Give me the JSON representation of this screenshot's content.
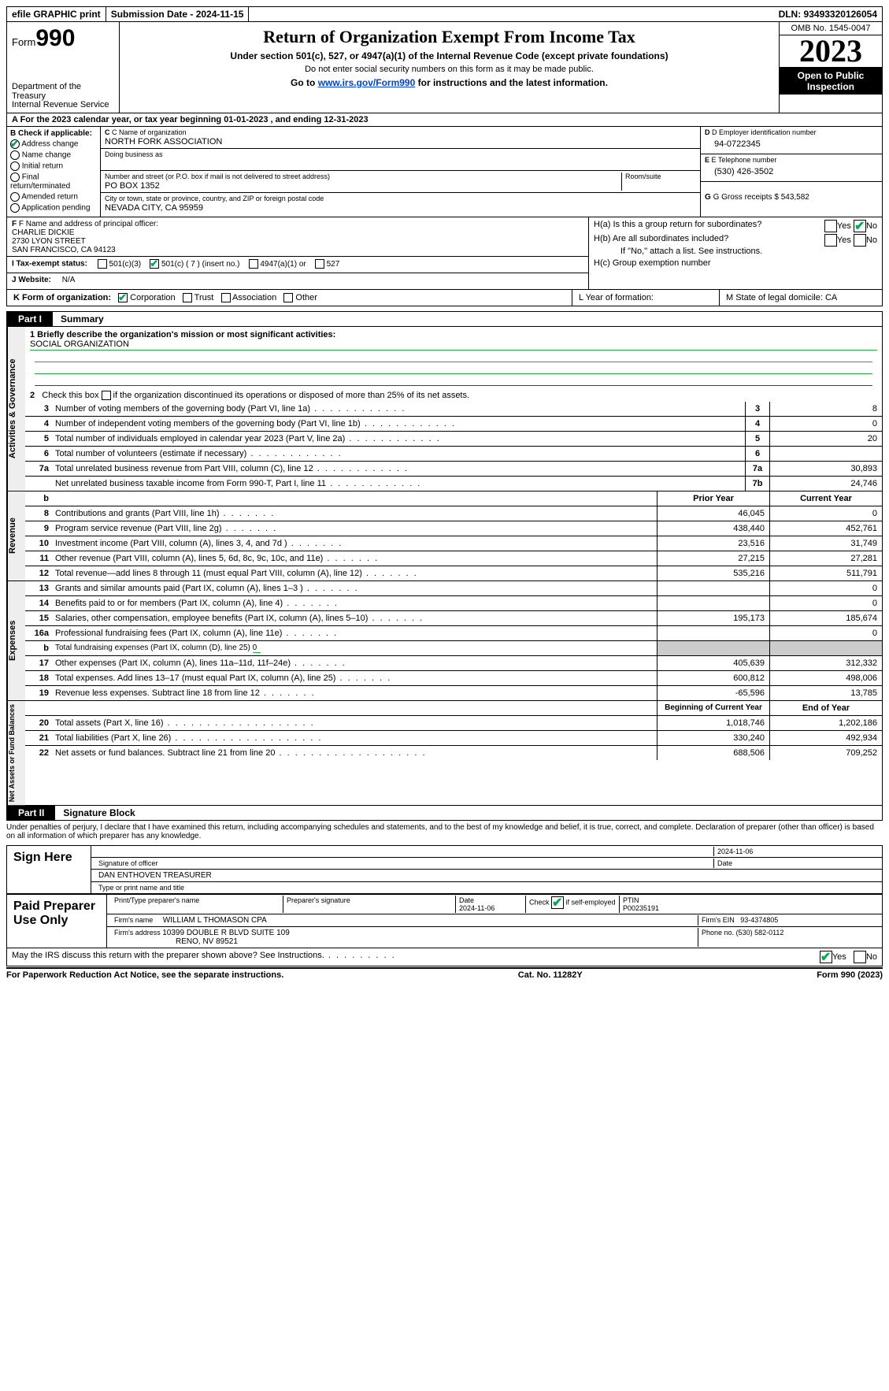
{
  "topbar": {
    "efile": "efile GRAPHIC print",
    "submission": "Submission Date - 2024-11-15",
    "dln": "DLN: 93493320126054"
  },
  "header": {
    "form_word": "Form",
    "form_num": "990",
    "title": "Return of Organization Exempt From Income Tax",
    "sub1": "Under section 501(c), 527, or 4947(a)(1) of the Internal Revenue Code (except private foundations)",
    "sub2": "Do not enter social security numbers on this form as it may be made public.",
    "sub3_pre": "Go to ",
    "sub3_link": "www.irs.gov/Form990",
    "sub3_post": " for instructions and the latest information.",
    "dept": "Department of the Treasury",
    "irs": "Internal Revenue Service",
    "omb": "OMB No. 1545-0047",
    "year": "2023",
    "open": "Open to Public Inspection"
  },
  "rowA": {
    "text": "A  For the 2023 calendar year, or tax year beginning 01-01-2023    , and ending 12-31-2023"
  },
  "boxB": {
    "label": "B Check if applicable:",
    "items": [
      "Address change",
      "Name change",
      "Initial return",
      "Final return/terminated",
      "Amended return",
      "Application pending"
    ],
    "checked_idx": 0
  },
  "boxC": {
    "name_lbl": "C Name of organization",
    "name": "NORTH FORK ASSOCIATION",
    "dba_lbl": "Doing business as",
    "street_lbl": "Number and street (or P.O. box if mail is not delivered to street address)",
    "room_lbl": "Room/suite",
    "street": "PO BOX 1352",
    "city_lbl": "City or town, state or province, country, and ZIP or foreign postal code",
    "city": "NEVADA CITY, CA  95959"
  },
  "boxD": {
    "lbl": "D Employer identification number",
    "val": "94-0722345"
  },
  "boxE": {
    "lbl": "E Telephone number",
    "val": "(530) 426-3502"
  },
  "boxG": {
    "lbl": "G Gross receipts $ ",
    "val": "543,582"
  },
  "boxF": {
    "lbl": "F  Name and address of principal officer:",
    "name": "CHARLIE DICKIE",
    "addr1": "2730 LYON STREET",
    "addr2": "SAN FRANCISCO, CA  94123"
  },
  "boxH": {
    "ha": "H(a)  Is this a group return for subordinates?",
    "hb": "H(b)  Are all subordinates included?",
    "hb_note": "If \"No,\" attach a list. See instructions.",
    "hc": "H(c)  Group exemption number"
  },
  "rowI": {
    "lbl": "I    Tax-exempt status:",
    "opts": [
      "501(c)(3)",
      "501(c) ( 7 ) (insert no.)",
      "4947(a)(1) or",
      "527"
    ],
    "checked_idx": 1
  },
  "rowJ": {
    "lbl": "J    Website:",
    "val": "N/A"
  },
  "rowK": {
    "lbl": "K Form of organization:",
    "opts": [
      "Corporation",
      "Trust",
      "Association",
      "Other"
    ],
    "checked_idx": 0,
    "L": "L Year of formation:",
    "M": "M State of legal domicile: CA"
  },
  "part1": {
    "tag": "Part I",
    "title": "Summary"
  },
  "mission": {
    "lbl": "1   Briefly describe the organization's mission or most significant activities:",
    "val": "SOCIAL ORGANIZATION"
  },
  "gov": {
    "tab": "Activities & Governance",
    "l2": "Check this box        if the organization discontinued its operations or disposed of more than 25% of its net assets.",
    "rows": [
      {
        "n": "3",
        "d": "Number of voting members of the governing body (Part VI, line 1a)",
        "box": "3",
        "v": "8"
      },
      {
        "n": "4",
        "d": "Number of independent voting members of the governing body (Part VI, line 1b)",
        "box": "4",
        "v": "0"
      },
      {
        "n": "5",
        "d": "Total number of individuals employed in calendar year 2023 (Part V, line 2a)",
        "box": "5",
        "v": "20"
      },
      {
        "n": "6",
        "d": "Total number of volunteers (estimate if necessary)",
        "box": "6",
        "v": ""
      },
      {
        "n": "7a",
        "d": "Total unrelated business revenue from Part VIII, column (C), line 12",
        "box": "7a",
        "v": "30,893"
      },
      {
        "n": "",
        "d": "Net unrelated business taxable income from Form 990-T, Part I, line 11",
        "box": "7b",
        "v": "24,746"
      }
    ]
  },
  "rev": {
    "tab": "Revenue",
    "hdr_prior": "Prior Year",
    "hdr_curr": "Current Year",
    "rows": [
      {
        "n": "8",
        "d": "Contributions and grants (Part VIII, line 1h)",
        "p": "46,045",
        "c": "0"
      },
      {
        "n": "9",
        "d": "Program service revenue (Part VIII, line 2g)",
        "p": "438,440",
        "c": "452,761"
      },
      {
        "n": "10",
        "d": "Investment income (Part VIII, column (A), lines 3, 4, and 7d )",
        "p": "23,516",
        "c": "31,749"
      },
      {
        "n": "11",
        "d": "Other revenue (Part VIII, column (A), lines 5, 6d, 8c, 9c, 10c, and 11e)",
        "p": "27,215",
        "c": "27,281"
      },
      {
        "n": "12",
        "d": "Total revenue—add lines 8 through 11 (must equal Part VIII, column (A), line 12)",
        "p": "535,216",
        "c": "511,791"
      }
    ]
  },
  "exp": {
    "tab": "Expenses",
    "rows": [
      {
        "n": "13",
        "d": "Grants and similar amounts paid (Part IX, column (A), lines 1–3 )",
        "p": "",
        "c": "0"
      },
      {
        "n": "14",
        "d": "Benefits paid to or for members (Part IX, column (A), line 4)",
        "p": "",
        "c": "0"
      },
      {
        "n": "15",
        "d": "Salaries, other compensation, employee benefits (Part IX, column (A), lines 5–10)",
        "p": "195,173",
        "c": "185,674"
      },
      {
        "n": "16a",
        "d": "Professional fundraising fees (Part IX, column (A), line 11e)",
        "p": "",
        "c": "0"
      },
      {
        "n": "b",
        "d": "Total fundraising expenses (Part IX, column (D), line 25) ",
        "u": "0",
        "shade": true
      },
      {
        "n": "17",
        "d": "Other expenses (Part IX, column (A), lines 11a–11d, 11f–24e)",
        "p": "405,639",
        "c": "312,332"
      },
      {
        "n": "18",
        "d": "Total expenses. Add lines 13–17 (must equal Part IX, column (A), line 25)",
        "p": "600,812",
        "c": "498,006"
      },
      {
        "n": "19",
        "d": "Revenue less expenses. Subtract line 18 from line 12",
        "p": "-65,596",
        "c": "13,785"
      }
    ]
  },
  "net": {
    "tab": "Net Assets or Fund Balances",
    "hdr_begin": "Beginning of Current Year",
    "hdr_end": "End of Year",
    "rows": [
      {
        "n": "20",
        "d": "Total assets (Part X, line 16)",
        "p": "1,018,746",
        "c": "1,202,186"
      },
      {
        "n": "21",
        "d": "Total liabilities (Part X, line 26)",
        "p": "330,240",
        "c": "492,934"
      },
      {
        "n": "22",
        "d": "Net assets or fund balances. Subtract line 21 from line 20",
        "p": "688,506",
        "c": "709,252"
      }
    ]
  },
  "part2": {
    "tag": "Part II",
    "title": "Signature Block"
  },
  "penalties": "Under penalties of perjury, I declare that I have examined this return, including accompanying schedules and statements, and to the best of my knowledge and belief, it is true, correct, and complete. Declaration of preparer (other than officer) is based on all information of which preparer has any knowledge.",
  "sign": {
    "here": "Sign Here",
    "date1": "2024-11-06",
    "sig_lbl": "Signature of officer",
    "date_lbl": "Date",
    "name": "DAN ENTHOVEN  TREASURER",
    "type_lbl": "Type or print name and title"
  },
  "prep": {
    "left": "Paid Preparer Use Only",
    "c1": "Print/Type preparer's name",
    "c2": "Preparer's signature",
    "c3": "Date",
    "date": "2024-11-06",
    "c4": "Check         if self-employed",
    "c5": "PTIN",
    "ptin": "P00235191",
    "firm_lbl": "Firm's name",
    "firm": "WILLIAM L THOMASON CPA",
    "ein_lbl": "Firm's EIN",
    "ein": "93-4374805",
    "addr_lbl": "Firm's address",
    "addr1": "10399 DOUBLE R BLVD SUITE 109",
    "addr2": "RENO, NV  89521",
    "phone_lbl": "Phone no.",
    "phone": "(530) 582-0112"
  },
  "discuss": "May the IRS discuss this return with the preparer shown above? See Instructions.",
  "footer": {
    "left": "For Paperwork Reduction Act Notice, see the separate instructions.",
    "mid": "Cat. No. 11282Y",
    "right_pre": "Form ",
    "right_b": "990",
    "right_post": " (2023)"
  }
}
